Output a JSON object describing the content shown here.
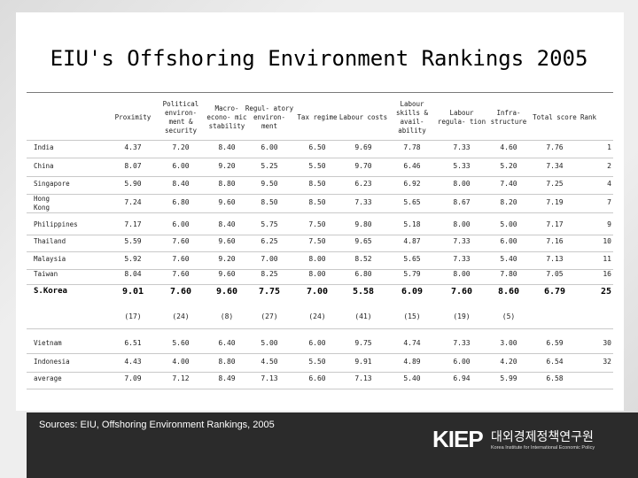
{
  "title": "EIU's Offshoring Environment Rankings 2005",
  "headers": [
    "Proximity",
    "Political environ- ment & security",
    "Macro- econo- mic stability",
    "Regul- atory environ- ment",
    "Tax regime",
    "Labour costs",
    "Labour skills & avail- ability",
    "Labour regula- tion",
    "Infra- structure",
    "Total score",
    "Rank"
  ],
  "rows": [
    {
      "country": "India",
      "values": [
        "4.37",
        "7.20",
        "8.40",
        "6.00",
        "6.50",
        "9.69",
        "7.78",
        "7.33",
        "4.60",
        "7.76",
        "1"
      ]
    },
    {
      "country": "China",
      "values": [
        "8.07",
        "6.00",
        "9.20",
        "5.25",
        "5.50",
        "9.70",
        "6.46",
        "5.33",
        "5.20",
        "7.34",
        "2"
      ]
    },
    {
      "country": "Singapore",
      "values": [
        "5.90",
        "8.40",
        "8.80",
        "9.50",
        "8.50",
        "6.23",
        "6.92",
        "8.00",
        "7.40",
        "7.25",
        "4"
      ]
    },
    {
      "country": "Hong Kong",
      "values": [
        "7.24",
        "6.80",
        "9.60",
        "8.50",
        "8.50",
        "7.33",
        "5.65",
        "8.67",
        "8.20",
        "7.19",
        "7"
      ]
    },
    {
      "country": "Philippines",
      "values": [
        "7.17",
        "6.00",
        "8.40",
        "5.75",
        "7.50",
        "9.80",
        "5.18",
        "8.00",
        "5.00",
        "7.17",
        "9"
      ]
    },
    {
      "country": "Thailand",
      "values": [
        "5.59",
        "7.60",
        "9.60",
        "6.25",
        "7.50",
        "9.65",
        "4.87",
        "7.33",
        "6.00",
        "7.16",
        "10"
      ]
    },
    {
      "country": "Malaysia",
      "values": [
        "5.92",
        "7.60",
        "9.20",
        "7.00",
        "8.00",
        "8.52",
        "5.65",
        "7.33",
        "5.40",
        "7.13",
        "11"
      ]
    },
    {
      "country": "Taiwan",
      "values": [
        "8.04",
        "7.60",
        "9.60",
        "8.25",
        "8.00",
        "6.80",
        "5.79",
        "8.00",
        "7.80",
        "7.05",
        "16"
      ]
    }
  ],
  "korea": {
    "country": "S.Korea",
    "values": [
      "9.01",
      "7.60",
      "9.60",
      "7.75",
      "7.00",
      "5.58",
      "6.09",
      "7.60",
      "8.60",
      "6.79",
      "25"
    ],
    "ranks": [
      "(17)",
      "(24)",
      "(8)",
      "(27)",
      "(24)",
      "(41)",
      "(15)",
      "(19)",
      "(5)"
    ]
  },
  "rows2": [
    {
      "country": "Vietnam",
      "values": [
        "6.51",
        "5.60",
        "6.40",
        "5.00",
        "6.00",
        "9.75",
        "4.74",
        "7.33",
        "3.00",
        "6.59",
        "30"
      ]
    },
    {
      "country": "Indonesia",
      "values": [
        "4.43",
        "4.00",
        "8.80",
        "4.50",
        "5.50",
        "9.91",
        "4.89",
        "6.00",
        "4.20",
        "6.54",
        "32"
      ]
    },
    {
      "country": "average",
      "values": [
        "7.09",
        "7.12",
        "8.49",
        "7.13",
        "6.60",
        "7.13",
        "5.40",
        "6.94",
        "5.99",
        "6.58",
        ""
      ]
    }
  ],
  "footer": {
    "sources": "Sources: EIU, Offshoring Environment Rankings, 2005",
    "logo_mark": "KIEP",
    "logo_korean": "대외경제정책연구원",
    "logo_english": "Korea Institute for International Economic Policy"
  }
}
